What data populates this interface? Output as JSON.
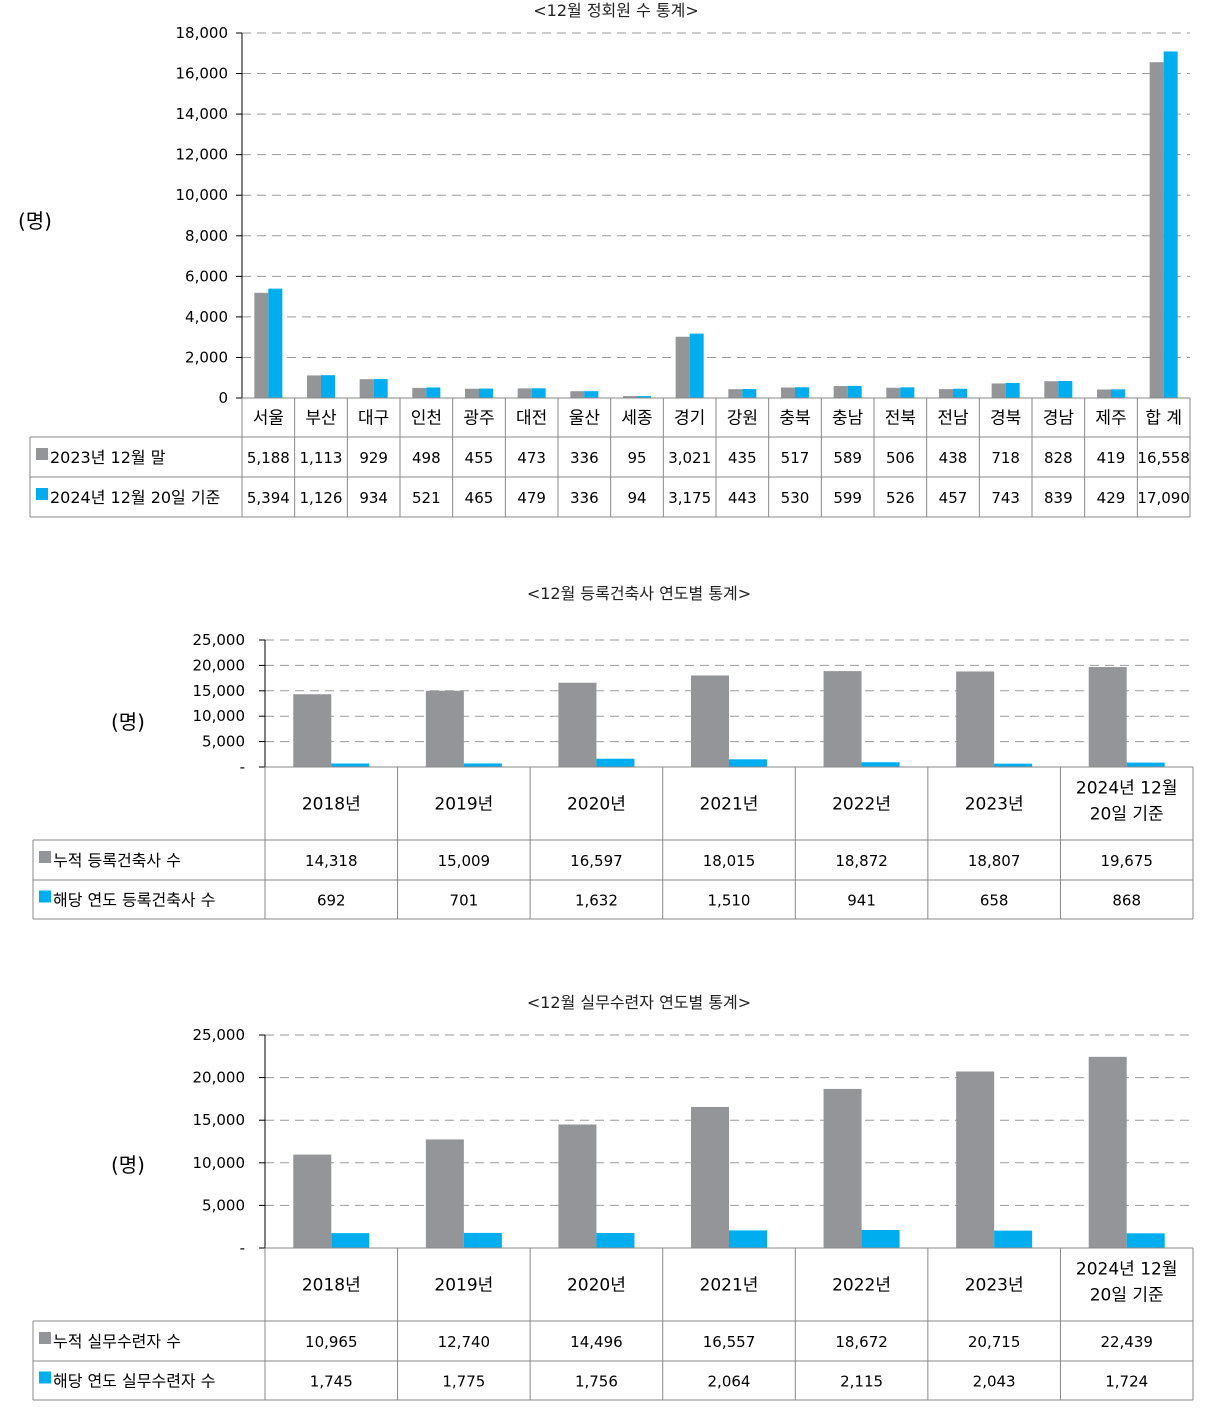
{
  "colors": {
    "gray": "#939598",
    "blue": "#00AEEF",
    "grid": "#9a9a9a"
  },
  "chart_data": [
    {
      "type": "bar",
      "title": "<12월 정회원 수 통계>",
      "ylabel": "(명)",
      "ylim": [
        0,
        18000
      ],
      "yticks": [
        "0",
        "2,000",
        "4,000",
        "6,000",
        "8,000",
        "10,000",
        "12,000",
        "14,000",
        "16,000",
        "18,000"
      ],
      "ytick_values": [
        0,
        2000,
        4000,
        6000,
        8000,
        10000,
        12000,
        14000,
        16000,
        18000
      ],
      "categories": [
        "서울",
        "부산",
        "대구",
        "인천",
        "광주",
        "대전",
        "울산",
        "세종",
        "경기",
        "강원",
        "충북",
        "충남",
        "전북",
        "전남",
        "경북",
        "경남",
        "제주",
        "합 계"
      ],
      "series": [
        {
          "name": "2023년 12월 말",
          "color": "#939598",
          "values": [
            5188,
            1113,
            929,
            498,
            455,
            473,
            336,
            95,
            3021,
            435,
            517,
            589,
            506,
            438,
            718,
            828,
            419,
            16558
          ],
          "labels": [
            "5,188",
            "1,113",
            "929",
            "498",
            "455",
            "473",
            "336",
            "95",
            "3,021",
            "435",
            "517",
            "589",
            "506",
            "438",
            "718",
            "828",
            "419",
            "16,558"
          ]
        },
        {
          "name": "2024년 12월 20일 기준",
          "color": "#00AEEF",
          "values": [
            5394,
            1126,
            934,
            521,
            465,
            479,
            336,
            94,
            3175,
            443,
            530,
            599,
            526,
            457,
            743,
            839,
            429,
            17090
          ],
          "labels": [
            "5,394",
            "1,126",
            "934",
            "521",
            "465",
            "479",
            "336",
            "94",
            "3,175",
            "443",
            "530",
            "599",
            "526",
            "457",
            "743",
            "839",
            "429",
            "17,090"
          ]
        }
      ]
    },
    {
      "type": "bar",
      "title": "<12월 등록건축사 연도별 통계>",
      "ylabel": "(명)",
      "ylim": [
        0,
        25000
      ],
      "yticks": [
        "-",
        "5,000",
        "10,000",
        "15,000",
        "20,000",
        "25,000"
      ],
      "ytick_values": [
        0,
        5000,
        10000,
        15000,
        20000,
        25000
      ],
      "categories": [
        "2018년",
        "2019년",
        "2020년",
        "2021년",
        "2022년",
        "2023년",
        "2024년 12월|20일 기준"
      ],
      "series": [
        {
          "name": "누적 등록건축사 수",
          "color": "#939598",
          "values": [
            14318,
            15009,
            16597,
            18015,
            18872,
            18807,
            19675
          ],
          "labels": [
            "14,318",
            "15,009",
            "16,597",
            "18,015",
            "18,872",
            "18,807",
            "19,675"
          ]
        },
        {
          "name": "해당 연도 등록건축사 수",
          "color": "#00AEEF",
          "values": [
            692,
            701,
            1632,
            1510,
            941,
            658,
            868
          ],
          "labels": [
            "692",
            "701",
            "1,632",
            "1,510",
            "941",
            "658",
            "868"
          ]
        }
      ]
    },
    {
      "type": "bar",
      "title": "<12월 실무수련자 연도별 통계>",
      "ylabel": "(명)",
      "ylim": [
        0,
        25000
      ],
      "yticks": [
        "-",
        "5,000",
        "10,000",
        "15,000",
        "20,000",
        "25,000"
      ],
      "ytick_values": [
        0,
        5000,
        10000,
        15000,
        20000,
        25000
      ],
      "categories": [
        "2018년",
        "2019년",
        "2020년",
        "2021년",
        "2022년",
        "2023년",
        "2024년 12월|20일 기준"
      ],
      "series": [
        {
          "name": "누적 실무수련자 수",
          "color": "#939598",
          "values": [
            10965,
            12740,
            14496,
            16557,
            18672,
            20715,
            22439
          ],
          "labels": [
            "10,965",
            "12,740",
            "14,496",
            "16,557",
            "18,672",
            "20,715",
            "22,439"
          ]
        },
        {
          "name": "해당 연도 실무수련자 수",
          "color": "#00AEEF",
          "values": [
            1745,
            1775,
            1756,
            2064,
            2115,
            2043,
            1724
          ],
          "labels": [
            "1,745",
            "1,775",
            "1,756",
            "2,064",
            "2,115",
            "2,043",
            "1,724"
          ]
        }
      ]
    }
  ]
}
